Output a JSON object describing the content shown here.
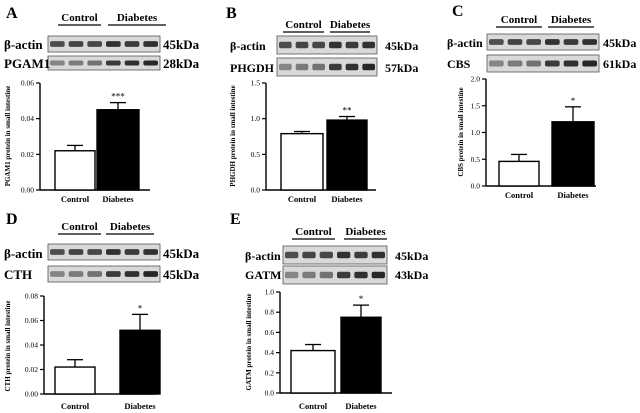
{
  "colors": {
    "control_bar": "#ffffff",
    "diabetes_bar": "#000000",
    "axis": "#000000",
    "blot_bg": "#d9d9d9",
    "band": "#1e1e1e"
  },
  "chart_data": [
    {
      "id": "A",
      "type": "bar",
      "panel_label": "A",
      "group_labels": [
        "Control",
        "Diabetes"
      ],
      "blots": [
        {
          "name": "β-actin",
          "size": "45kDa"
        },
        {
          "name": "PGAM1",
          "size": "28kDa"
        }
      ],
      "categories": [
        "Control",
        "Diabetes"
      ],
      "values": [
        0.022,
        0.045
      ],
      "errors": [
        0.003,
        0.004
      ],
      "significance": [
        "",
        "***"
      ],
      "ylabel": "PGAM1 protein in small intestine",
      "ylim": [
        0,
        0.06
      ],
      "yticks": [
        0.0,
        0.02,
        0.04,
        0.06
      ],
      "ytick_labels": [
        "0.00",
        "0.02",
        "0.04",
        "0.06"
      ]
    },
    {
      "id": "B",
      "type": "bar",
      "panel_label": "B",
      "group_labels": [
        "Control",
        "Diabetes"
      ],
      "blots": [
        {
          "name": "β-actin",
          "size": "45kDa"
        },
        {
          "name": "PHGDH",
          "size": "57kDa"
        }
      ],
      "categories": [
        "Control",
        "Diabetes"
      ],
      "values": [
        0.79,
        0.98
      ],
      "errors": [
        0.03,
        0.05
      ],
      "significance": [
        "",
        "**"
      ],
      "ylabel": "PHGDH protein in small intestine",
      "ylim": [
        0,
        1.5
      ],
      "yticks": [
        0.0,
        0.5,
        1.0,
        1.5
      ],
      "ytick_labels": [
        "0.0",
        "0.5",
        "1.0",
        "1.5"
      ]
    },
    {
      "id": "C",
      "type": "bar",
      "panel_label": "C",
      "group_labels": [
        "Control",
        "Diabetes"
      ],
      "blots": [
        {
          "name": "β-actin",
          "size": "45kDa"
        },
        {
          "name": "CBS",
          "size": "61kDa"
        }
      ],
      "categories": [
        "Control",
        "Diabetes"
      ],
      "values": [
        0.46,
        1.2
      ],
      "errors": [
        0.13,
        0.28
      ],
      "significance": [
        "",
        "*"
      ],
      "ylabel": "CBS protein in small intestine",
      "ylim": [
        0,
        2.0
      ],
      "yticks": [
        0.0,
        0.5,
        1.0,
        1.5,
        2.0
      ],
      "ytick_labels": [
        "0.0",
        "0.5",
        "1.0",
        "1.5",
        "2.0"
      ]
    },
    {
      "id": "D",
      "type": "bar",
      "panel_label": "D",
      "group_labels": [
        "Control",
        "Diabetes"
      ],
      "blots": [
        {
          "name": "β-actin",
          "size": "45kDa"
        },
        {
          "name": "CTH",
          "size": "45kDa"
        }
      ],
      "categories": [
        "Control",
        "Diabetes"
      ],
      "values": [
        0.022,
        0.052
      ],
      "errors": [
        0.006,
        0.013
      ],
      "significance": [
        "",
        "*"
      ],
      "ylabel": "CTH protein in small intestine",
      "ylim": [
        0,
        0.08
      ],
      "yticks": [
        0.0,
        0.02,
        0.04,
        0.06,
        0.08
      ],
      "ytick_labels": [
        "0.00",
        "0.02",
        "0.04",
        "0.06",
        "0.08"
      ]
    },
    {
      "id": "E",
      "type": "bar",
      "panel_label": "E",
      "group_labels": [
        "Control",
        "Diabetes"
      ],
      "blots": [
        {
          "name": "β-actin",
          "size": "45kDa"
        },
        {
          "name": "GATM",
          "size": "43kDa"
        }
      ],
      "categories": [
        "Control",
        "Diabetes"
      ],
      "values": [
        0.42,
        0.75
      ],
      "errors": [
        0.06,
        0.12
      ],
      "significance": [
        "",
        "*"
      ],
      "ylabel": "GATM protein in small intestine",
      "ylim": [
        0,
        1.0
      ],
      "yticks": [
        0.0,
        0.2,
        0.4,
        0.6,
        0.8,
        1.0
      ],
      "ytick_labels": [
        "0.0",
        "0.2",
        "0.4",
        "0.6",
        "0.8",
        "1.0"
      ]
    }
  ]
}
